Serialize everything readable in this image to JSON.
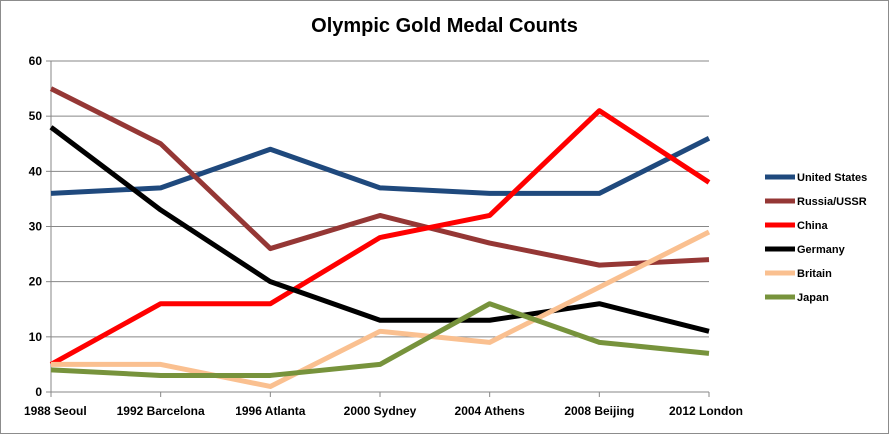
{
  "chart_data": {
    "type": "line",
    "title": "Olympic Gold Medal Counts",
    "xlabel": "",
    "ylabel": "",
    "categories": [
      "1988 Seoul",
      "1992 Barcelona",
      "1996 Atlanta",
      "2000 Sydney",
      "2004 Athens",
      "2008 Beijing",
      "2012 London"
    ],
    "ylim": [
      0,
      60
    ],
    "yticks": [
      0,
      10,
      20,
      30,
      40,
      50,
      60
    ],
    "grid": true,
    "legend_position": "right",
    "series": [
      {
        "name": "United States",
        "color": "#1f497d",
        "values": [
          36,
          37,
          44,
          37,
          36,
          36,
          46
        ]
      },
      {
        "name": "Russia/USSR",
        "color": "#953735",
        "values": [
          55,
          45,
          26,
          32,
          27,
          23,
          24
        ]
      },
      {
        "name": "China",
        "color": "#ff0000",
        "values": [
          5,
          16,
          16,
          28,
          32,
          51,
          38
        ]
      },
      {
        "name": "Germany",
        "color": "#000000",
        "values": [
          48,
          33,
          20,
          13,
          13,
          16,
          11
        ]
      },
      {
        "name": "Britain",
        "color": "#fac090",
        "values": [
          5,
          5,
          1,
          11,
          9,
          19,
          29
        ]
      },
      {
        "name": "Japan",
        "color": "#77933c",
        "values": [
          4,
          3,
          3,
          5,
          16,
          9,
          7
        ]
      }
    ]
  }
}
